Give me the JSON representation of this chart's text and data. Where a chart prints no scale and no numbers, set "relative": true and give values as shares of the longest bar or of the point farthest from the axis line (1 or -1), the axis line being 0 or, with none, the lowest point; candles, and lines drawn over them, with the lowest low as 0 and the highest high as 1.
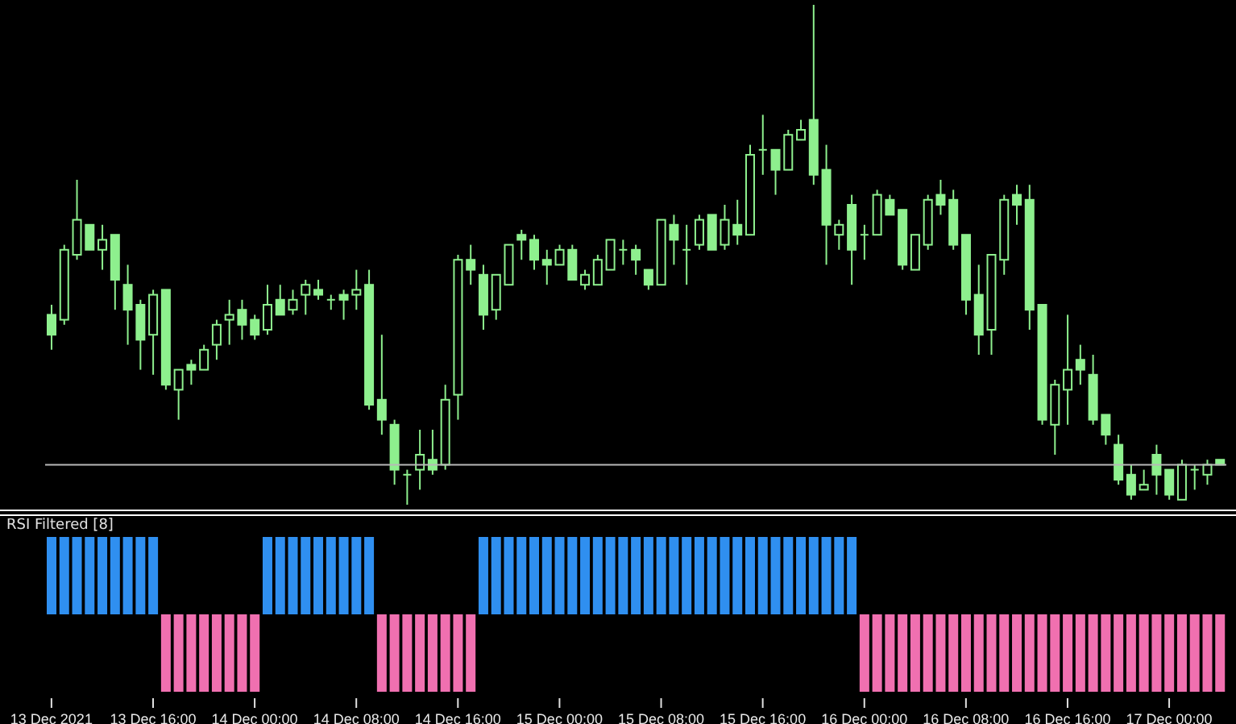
{
  "chart_data": [
    {
      "type": "candlestick",
      "relative": true,
      "tick_labels": false,
      "color": "#8ef08e",
      "categories": [
        null,
        null,
        null,
        null,
        null,
        null,
        null,
        null,
        null,
        null,
        null,
        null,
        null,
        null,
        null,
        null,
        null,
        null,
        null,
        null,
        null,
        null,
        null,
        null,
        null,
        null,
        null,
        null,
        null,
        null,
        null,
        null,
        null,
        null,
        null,
        null,
        null,
        null,
        null,
        null,
        null,
        null,
        null,
        null,
        null,
        null,
        null,
        null,
        null,
        null,
        null,
        null,
        null,
        null,
        null,
        null,
        null,
        null,
        null,
        null,
        null,
        null,
        null,
        null,
        null,
        null,
        null,
        null,
        null,
        null,
        null,
        null,
        null,
        null,
        null,
        null,
        null,
        null,
        null,
        null,
        null,
        null,
        null,
        null,
        null,
        null,
        null,
        null,
        null,
        null,
        null,
        null,
        null
      ],
      "ohlc": [
        [
          0.38,
          0.4,
          0.31,
          0.34
        ],
        [
          0.37,
          0.52,
          0.36,
          0.51
        ],
        [
          0.5,
          0.65,
          0.49,
          0.57
        ],
        [
          0.56,
          0.56,
          0.51,
          0.51
        ],
        [
          0.51,
          0.56,
          0.47,
          0.53
        ],
        [
          0.54,
          0.54,
          0.39,
          0.45
        ],
        [
          0.44,
          0.48,
          0.32,
          0.39
        ],
        [
          0.4,
          0.41,
          0.27,
          0.33
        ],
        [
          0.34,
          0.43,
          0.26,
          0.42
        ],
        [
          0.43,
          0.43,
          0.23,
          0.24
        ],
        [
          0.23,
          0.27,
          0.17,
          0.27
        ],
        [
          0.28,
          0.29,
          0.24,
          0.27
        ],
        [
          0.27,
          0.32,
          0.27,
          0.31
        ],
        [
          0.32,
          0.37,
          0.29,
          0.36
        ],
        [
          0.37,
          0.41,
          0.32,
          0.38
        ],
        [
          0.39,
          0.41,
          0.33,
          0.36
        ],
        [
          0.37,
          0.38,
          0.33,
          0.34
        ],
        [
          0.35,
          0.44,
          0.34,
          0.4
        ],
        [
          0.41,
          0.44,
          0.38,
          0.38
        ],
        [
          0.39,
          0.43,
          0.38,
          0.41
        ],
        [
          0.42,
          0.45,
          0.38,
          0.44
        ],
        [
          0.43,
          0.45,
          0.41,
          0.42
        ],
        [
          0.41,
          0.42,
          0.39,
          0.41
        ],
        [
          0.42,
          0.43,
          0.37,
          0.41
        ],
        [
          0.42,
          0.47,
          0.39,
          0.43
        ],
        [
          0.44,
          0.47,
          0.19,
          0.2
        ],
        [
          0.21,
          0.34,
          0.14,
          0.17
        ],
        [
          0.16,
          0.17,
          0.04,
          0.07
        ],
        [
          0.06,
          0.07,
          0.0,
          0.06
        ],
        [
          0.07,
          0.15,
          0.03,
          0.1
        ],
        [
          0.09,
          0.15,
          0.06,
          0.07
        ],
        [
          0.08,
          0.24,
          0.07,
          0.21
        ],
        [
          0.22,
          0.5,
          0.17,
          0.49
        ],
        [
          0.49,
          0.52,
          0.44,
          0.47
        ],
        [
          0.46,
          0.48,
          0.35,
          0.38
        ],
        [
          0.39,
          0.46,
          0.37,
          0.46
        ],
        [
          0.44,
          0.52,
          0.44,
          0.52
        ],
        [
          0.54,
          0.55,
          0.49,
          0.53
        ],
        [
          0.53,
          0.54,
          0.47,
          0.49
        ],
        [
          0.49,
          0.51,
          0.44,
          0.48
        ],
        [
          0.48,
          0.52,
          0.48,
          0.51
        ],
        [
          0.51,
          0.52,
          0.45,
          0.45
        ],
        [
          0.44,
          0.47,
          0.43,
          0.46
        ],
        [
          0.44,
          0.5,
          0.44,
          0.49
        ],
        [
          0.47,
          0.53,
          0.47,
          0.53
        ],
        [
          0.51,
          0.53,
          0.48,
          0.51
        ],
        [
          0.51,
          0.52,
          0.46,
          0.49
        ],
        [
          0.47,
          0.47,
          0.43,
          0.44
        ],
        [
          0.44,
          0.57,
          0.44,
          0.57
        ],
        [
          0.56,
          0.58,
          0.48,
          0.53
        ],
        [
          0.51,
          0.56,
          0.44,
          0.51
        ],
        [
          0.52,
          0.58,
          0.51,
          0.57
        ],
        [
          0.58,
          0.58,
          0.51,
          0.51
        ],
        [
          0.52,
          0.6,
          0.51,
          0.57
        ],
        [
          0.56,
          0.61,
          0.52,
          0.54
        ],
        [
          0.54,
          0.72,
          0.54,
          0.7
        ],
        [
          0.71,
          0.78,
          0.66,
          0.71
        ],
        [
          0.71,
          0.71,
          0.62,
          0.67
        ],
        [
          0.67,
          0.75,
          0.67,
          0.74
        ],
        [
          0.73,
          0.77,
          0.73,
          0.75
        ],
        [
          0.77,
          1.0,
          0.64,
          0.66
        ],
        [
          0.67,
          0.72,
          0.48,
          0.56
        ],
        [
          0.54,
          0.57,
          0.51,
          0.56
        ],
        [
          0.6,
          0.62,
          0.44,
          0.51
        ],
        [
          0.54,
          0.56,
          0.49,
          0.54
        ],
        [
          0.54,
          0.63,
          0.54,
          0.62
        ],
        [
          0.61,
          0.62,
          0.58,
          0.58
        ],
        [
          0.59,
          0.59,
          0.47,
          0.48
        ],
        [
          0.47,
          0.54,
          0.47,
          0.54
        ],
        [
          0.52,
          0.62,
          0.51,
          0.61
        ],
        [
          0.62,
          0.65,
          0.58,
          0.6
        ],
        [
          0.61,
          0.63,
          0.51,
          0.52
        ],
        [
          0.54,
          0.54,
          0.38,
          0.41
        ],
        [
          0.42,
          0.48,
          0.3,
          0.34
        ],
        [
          0.35,
          0.5,
          0.3,
          0.5
        ],
        [
          0.49,
          0.62,
          0.46,
          0.61
        ],
        [
          0.62,
          0.64,
          0.56,
          0.6
        ],
        [
          0.61,
          0.64,
          0.35,
          0.39
        ],
        [
          0.4,
          0.4,
          0.16,
          0.17
        ],
        [
          0.16,
          0.25,
          0.1,
          0.24
        ],
        [
          0.23,
          0.38,
          0.16,
          0.27
        ],
        [
          0.29,
          0.32,
          0.24,
          0.27
        ],
        [
          0.26,
          0.3,
          0.16,
          0.17
        ],
        [
          0.18,
          0.18,
          0.12,
          0.14
        ],
        [
          0.12,
          0.14,
          0.04,
          0.05
        ],
        [
          0.06,
          0.08,
          0.01,
          0.02
        ],
        [
          0.03,
          0.07,
          0.03,
          0.04
        ],
        [
          0.1,
          0.12,
          0.02,
          0.06
        ],
        [
          0.07,
          0.07,
          0.01,
          0.02
        ],
        [
          0.01,
          0.09,
          0.01,
          0.08
        ],
        [
          0.07,
          0.08,
          0.03,
          0.07
        ],
        [
          0.06,
          0.09,
          0.04,
          0.08
        ],
        [
          0.09,
          0.09,
          0.08,
          0.08
        ]
      ],
      "ref_lines": [
        {
          "axis": "y",
          "value": 0.08,
          "color": "#b8b8b8"
        }
      ]
    },
    {
      "type": "bar",
      "relative": true,
      "tick_labels": "x",
      "title": "RSI Filtered [8]",
      "categories": [
        "13 Dec 2021",
        null,
        null,
        null,
        null,
        null,
        null,
        null,
        "13 Dec 16:00",
        null,
        null,
        null,
        null,
        null,
        null,
        null,
        "14 Dec 00:00",
        null,
        null,
        null,
        null,
        null,
        null,
        null,
        "14 Dec 08:00",
        null,
        null,
        null,
        null,
        null,
        null,
        null,
        "14 Dec 16:00",
        null,
        null,
        null,
        null,
        null,
        null,
        null,
        "15 Dec 00:00",
        null,
        null,
        null,
        null,
        null,
        null,
        null,
        "15 Dec 08:00",
        null,
        null,
        null,
        null,
        null,
        null,
        null,
        "15 Dec 16:00",
        null,
        null,
        null,
        null,
        null,
        null,
        null,
        "16 Dec 00:00",
        null,
        null,
        null,
        null,
        null,
        null,
        null,
        "16 Dec 08:00",
        null,
        null,
        null,
        null,
        null,
        null,
        null,
        "16 Dec 16:00",
        null,
        null,
        null,
        null,
        null,
        null,
        null,
        "17 Dec 00:00",
        null,
        null,
        null,
        null
      ],
      "values": [
        1,
        1,
        1,
        1,
        1,
        1,
        1,
        1,
        1,
        -1,
        -1,
        -1,
        -1,
        -1,
        -1,
        -1,
        -1,
        1,
        1,
        1,
        1,
        1,
        1,
        1,
        1,
        1,
        -1,
        -1,
        -1,
        -1,
        -1,
        -1,
        -1,
        -1,
        1,
        1,
        1,
        1,
        1,
        1,
        1,
        1,
        1,
        1,
        1,
        1,
        1,
        1,
        1,
        1,
        1,
        1,
        1,
        1,
        1,
        1,
        1,
        1,
        1,
        1,
        1,
        1,
        1,
        1,
        -1,
        -1,
        -1,
        -1,
        -1,
        -1,
        -1,
        -1,
        -1,
        -1,
        -1,
        -1,
        -1,
        -1,
        -1,
        -1,
        -1,
        -1,
        -1,
        -1,
        -1,
        -1,
        -1,
        -1,
        -1,
        -1,
        -1,
        -1,
        -1
      ],
      "colors": [
        "#2f8ff0",
        "#2f8ff0",
        "#2f8ff0",
        "#2f8ff0",
        "#2f8ff0",
        "#2f8ff0",
        "#2f8ff0",
        "#2f8ff0",
        "#2f8ff0",
        "#f070b0",
        "#f070b0",
        "#f070b0",
        "#f070b0",
        "#f070b0",
        "#f070b0",
        "#f070b0",
        "#f070b0",
        "#2f8ff0",
        "#2f8ff0",
        "#2f8ff0",
        "#2f8ff0",
        "#2f8ff0",
        "#2f8ff0",
        "#2f8ff0",
        "#2f8ff0",
        "#2f8ff0",
        "#f070b0",
        "#f070b0",
        "#f070b0",
        "#f070b0",
        "#f070b0",
        "#f070b0",
        "#f070b0",
        "#f070b0",
        "#2f8ff0",
        "#2f8ff0",
        "#2f8ff0",
        "#2f8ff0",
        "#2f8ff0",
        "#2f8ff0",
        "#2f8ff0",
        "#2f8ff0",
        "#2f8ff0",
        "#2f8ff0",
        "#2f8ff0",
        "#2f8ff0",
        "#2f8ff0",
        "#2f8ff0",
        "#2f8ff0",
        "#2f8ff0",
        "#2f8ff0",
        "#2f8ff0",
        "#2f8ff0",
        "#2f8ff0",
        "#2f8ff0",
        "#2f8ff0",
        "#2f8ff0",
        "#2f8ff0",
        "#2f8ff0",
        "#2f8ff0",
        "#2f8ff0",
        "#2f8ff0",
        "#2f8ff0",
        "#2f8ff0",
        "#f070b0",
        "#f070b0",
        "#f070b0",
        "#f070b0",
        "#f070b0",
        "#f070b0",
        "#f070b0",
        "#f070b0",
        "#f070b0",
        "#f070b0",
        "#f070b0",
        "#f070b0",
        "#f070b0",
        "#f070b0",
        "#f070b0",
        "#f070b0",
        "#f070b0",
        "#f070b0",
        "#f070b0",
        "#f070b0",
        "#f070b0",
        "#f070b0",
        "#f070b0",
        "#f070b0",
        "#f070b0",
        "#f070b0",
        "#f070b0",
        "#f070b0",
        "#f070b0"
      ]
    }
  ]
}
